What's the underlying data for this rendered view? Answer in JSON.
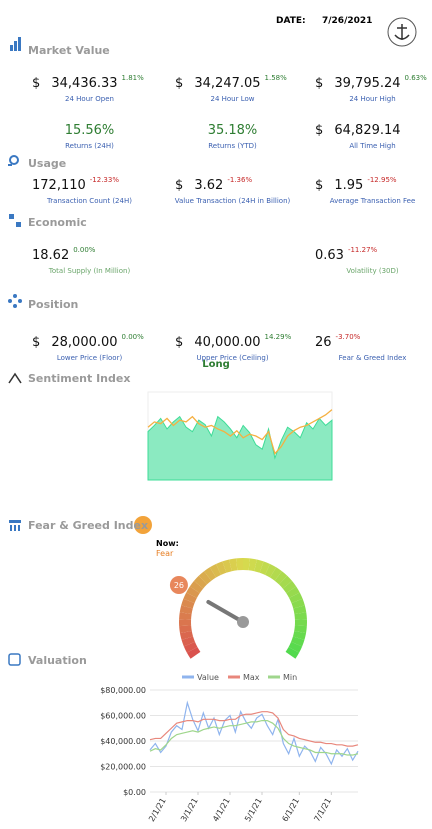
{
  "header": {
    "date_label": "DATE:",
    "date": "7/26/2021"
  },
  "market_value": {
    "title": "Market Value",
    "rows": [
      [
        {
          "prefix": "$",
          "value": "34,436.33",
          "change": "1.81%",
          "label": "24 Hour Open"
        },
        {
          "prefix": "$",
          "value": "34,247.05",
          "change": "1.58%",
          "label": "24 Hour Low"
        },
        {
          "prefix": "$",
          "value": "39,795.24",
          "change": "0.63%",
          "label": "24 Hour High"
        }
      ],
      [
        {
          "value": "15.56%",
          "label": "Returns (24H)"
        },
        {
          "value": "35.18%",
          "label": "Returns (YTD)"
        },
        {
          "prefix": "$",
          "value": "64,829.14",
          "label": "All Time High"
        }
      ]
    ]
  },
  "usage": {
    "title": "Usage",
    "rows": [
      [
        {
          "value": "172,110",
          "change": "-12.33%",
          "label": "Transaction Count (24H)"
        },
        {
          "prefix": "$",
          "value": "3.62",
          "change": "-1.36%",
          "label": "Value Transaction (24H in Billion)"
        },
        {
          "prefix": "$",
          "value": "1.95",
          "change": "-12.95%",
          "label": "Average Transaction Fee"
        }
      ]
    ]
  },
  "economic": {
    "title": "Economic",
    "rows": [
      [
        {
          "value": "18.62",
          "change": "0.00%",
          "label": "Total Supply (In Million)"
        },
        {
          "value": "0.63",
          "change": "-11.27%",
          "label": "Volatility (30D)"
        }
      ]
    ]
  },
  "position": {
    "title": "Position",
    "rows": [
      [
        {
          "prefix": "$",
          "value": "28,000.00",
          "change": "0.00%",
          "label": "Lower Price (Floor)"
        },
        {
          "prefix": "$",
          "value": "40,000.00",
          "change": "14.29%",
          "label": "Upper Price (Ceiling)"
        },
        {
          "value": "26",
          "change": "-3.70%",
          "label": "Fear & Greed Index"
        }
      ]
    ],
    "signal": "Long"
  },
  "sentiment": {
    "title": "Sentiment Index"
  },
  "fear_greed": {
    "title": "Fear & Greed Index",
    "now_label": "Now:",
    "now": "Fear"
  },
  "valuation": {
    "title": "Valuation"
  },
  "chart_data": [
    {
      "type": "area_line",
      "ylim": [
        0,
        100
      ],
      "series": [
        {
          "color": "#3ddc97",
          "values": [
            55,
            62,
            70,
            58,
            66,
            72,
            60,
            55,
            68,
            63,
            50,
            72,
            66,
            58,
            48,
            62,
            54,
            40,
            35,
            58,
            25,
            45,
            60,
            55,
            48,
            65,
            58,
            70,
            62,
            68
          ]
        },
        {
          "color": "#f5b041",
          "values": [
            60,
            66,
            64,
            70,
            62,
            68,
            66,
            72,
            64,
            60,
            62,
            58,
            55,
            50,
            56,
            48,
            52,
            50,
            46,
            55,
            30,
            38,
            50,
            56,
            60,
            62,
            66,
            70,
            74,
            80
          ]
        }
      ]
    },
    {
      "type": "gauge",
      "value": 26,
      "value_labels": [
        "26"
      ],
      "lim": [
        0,
        100
      ]
    },
    {
      "type": "line",
      "categories": [
        null,
        null,
        null,
        "2/1/21",
        null,
        null,
        null,
        null,
        null,
        "3/1/21",
        null,
        null,
        null,
        null,
        null,
        "4/1/21",
        null,
        null,
        null,
        null,
        null,
        "5/1/21",
        null,
        null,
        null,
        null,
        null,
        null,
        "6/1/21",
        null,
        null,
        null,
        null,
        null,
        "7/1/21",
        null,
        null,
        null,
        null,
        null
      ],
      "ylim": [
        0,
        80000
      ],
      "yticks": [
        {
          "value": 0,
          "label": "$0.00"
        },
        {
          "value": 20000,
          "label": "$20,000.00"
        },
        {
          "value": 40000,
          "label": "$40,000.00"
        },
        {
          "value": 60000,
          "label": "$60,000.00"
        },
        {
          "value": 80000,
          "label": "$80,000.00"
        }
      ],
      "grid": true,
      "series": [
        {
          "name": "Value",
          "color": "#8fb4ee",
          "values": [
            33000,
            38000,
            31000,
            36000,
            47000,
            52000,
            49000,
            70000,
            57000,
            48000,
            62000,
            50000,
            58000,
            45000,
            56000,
            60000,
            47000,
            63000,
            55000,
            50000,
            58000,
            61000,
            52000,
            45000,
            57000,
            38000,
            30000,
            42000,
            28000,
            36000,
            32000,
            24000,
            35000,
            30000,
            22000,
            33000,
            28000,
            34000,
            25000,
            32000
          ]
        },
        {
          "name": "Max",
          "color": "#e8877c",
          "values": [
            41000,
            42000,
            42000,
            46000,
            50000,
            54000,
            55000,
            56000,
            56000,
            55000,
            57000,
            57000,
            57000,
            56000,
            56000,
            57000,
            57000,
            60000,
            61000,
            61000,
            62000,
            63000,
            63000,
            62000,
            58000,
            49000,
            45000,
            44000,
            42000,
            41000,
            40000,
            39000,
            39000,
            38000,
            38000,
            37000,
            37000,
            36000,
            36000,
            37000
          ]
        },
        {
          "name": "Min",
          "color": "#9fd68c",
          "values": [
            32000,
            34000,
            33000,
            37000,
            42000,
            45000,
            46000,
            47000,
            48000,
            47000,
            49000,
            50000,
            51000,
            50000,
            51000,
            52000,
            52000,
            53000,
            54000,
            55000,
            55000,
            56000,
            56000,
            54000,
            50000,
            42000,
            38000,
            36000,
            35000,
            34000,
            33000,
            31000,
            31000,
            31000,
            30000,
            30000,
            30000,
            29000,
            29000,
            30000
          ]
        }
      ]
    }
  ]
}
